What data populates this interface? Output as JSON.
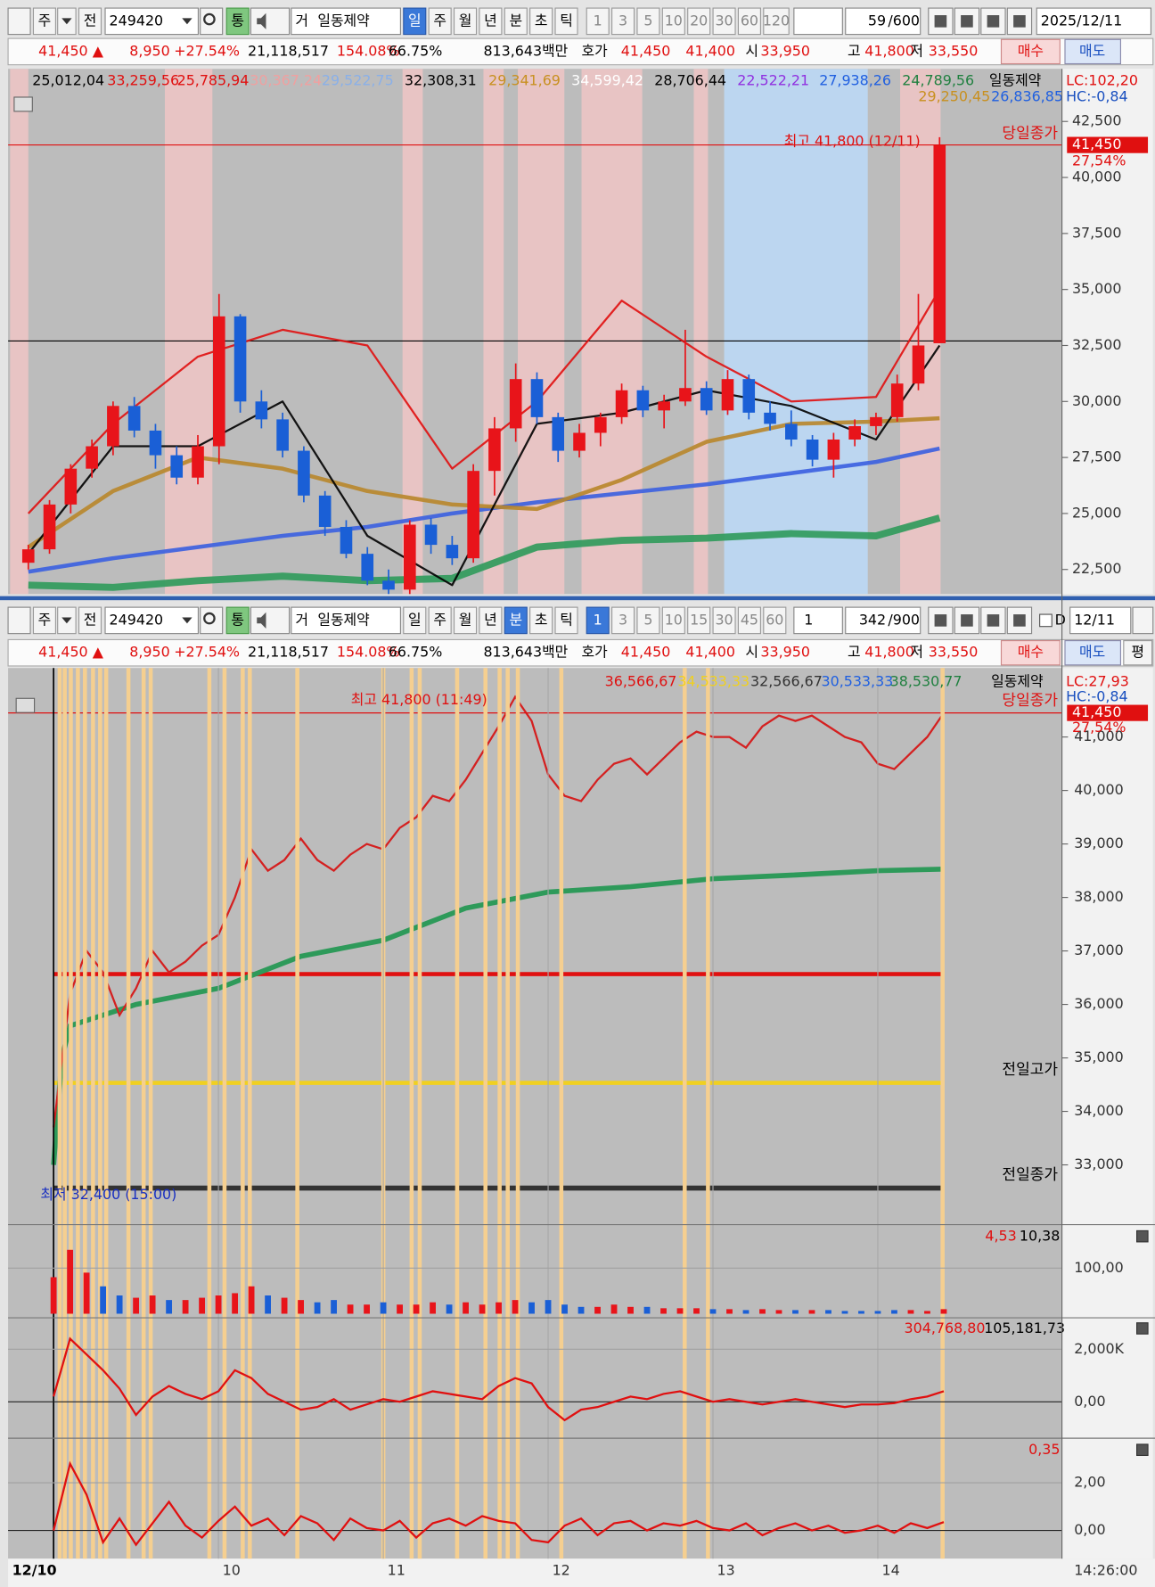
{
  "top_toolbar": {
    "mode": "주",
    "prev": "전",
    "code": "249420",
    "tong": "통",
    "geo": "거",
    "name": "일동제약",
    "periods": [
      "일",
      "주",
      "월",
      "년",
      "분",
      "초",
      "틱"
    ],
    "intervals": [
      "1",
      "3",
      "5",
      "10",
      "20",
      "30",
      "60",
      "120"
    ],
    "count": "59",
    "max": "/600",
    "date": "2025/12/11"
  },
  "top_info": {
    "price": "41,450 ▲",
    "change": "8,950",
    "rate": "+27.54%",
    "volume": "21,118,517",
    "vol_ratio": "154.08%",
    "turnover": "66.75%",
    "amount": "813,643백만",
    "quote_label": "호가",
    "ask": "41,450",
    "bid": "41,400",
    "open_label": "시",
    "open": "33,950",
    "high_label": "고",
    "high": "41,800",
    "low_label": "저",
    "low": "33,550",
    "buy": "매수",
    "sell": "매도"
  },
  "daily": {
    "type": "candlestick",
    "up_color": "#e8141a",
    "down_color": "#1a5fd6",
    "legend": [
      {
        "label": "25,012,04",
        "color": "#000000"
      },
      {
        "label": "33,259,56",
        "color": "#e01010"
      },
      {
        "label": "25,785,94",
        "color": "#e01010"
      },
      {
        "label": "30,367,24",
        "color": "#f0a0a0"
      },
      {
        "label": "29,522,75",
        "color": "#8ab0e8"
      },
      {
        "label": "32,308,31",
        "color": "#000000"
      },
      {
        "label": "29,341,69",
        "color": "#c89020"
      },
      {
        "label": "34,599,42",
        "color": "#ffffff"
      },
      {
        "label": "28,706,44",
        "color": "#000000"
      },
      {
        "label": "22,522,21",
        "color": "#9030e0"
      },
      {
        "label": "27,938,26",
        "color": "#2060e0"
      },
      {
        "label": "24,789,56",
        "color": "#208040"
      }
    ],
    "legend2": [
      {
        "label": "29,250,45",
        "color": "#c89020"
      },
      {
        "label": "26,836,85",
        "color": "#2060e0"
      }
    ],
    "name": "일동제약",
    "lc": "LC:102,20",
    "hc": "HC:-0,84",
    "max_note": "최고 41,800 (12/11)",
    "close_label": "당일종가",
    "last": {
      "value": 41450,
      "label": "41,450"
    },
    "last_rate": "27,54%",
    "hline": 32700,
    "ylim": [
      21400,
      44850
    ],
    "yticks": [
      {
        "value": 42500,
        "label": "42,500"
      },
      {
        "value": 40000,
        "label": "40,000"
      },
      {
        "value": 37500,
        "label": "37,500"
      },
      {
        "value": 35000,
        "label": "35,000"
      },
      {
        "value": 32500,
        "label": "32,500"
      },
      {
        "value": 30000,
        "label": "30,000"
      },
      {
        "value": 27500,
        "label": "27,500"
      },
      {
        "value": 25000,
        "label": "25,000"
      },
      {
        "value": 22500,
        "label": "22,500"
      }
    ],
    "candles": [
      [
        22800,
        23600,
        22500,
        23400
      ],
      [
        23400,
        25600,
        23200,
        25400
      ],
      [
        25400,
        27200,
        25000,
        27000
      ],
      [
        27000,
        28300,
        26600,
        28000
      ],
      [
        28000,
        30000,
        27600,
        29800
      ],
      [
        29800,
        30200,
        28400,
        28700
      ],
      [
        28700,
        29000,
        27000,
        27600
      ],
      [
        27600,
        28000,
        26300,
        26600
      ],
      [
        26600,
        28500,
        26300,
        28000
      ],
      [
        28000,
        34800,
        27200,
        33800
      ],
      [
        33800,
        33900,
        29500,
        30000
      ],
      [
        30000,
        30500,
        28800,
        29200
      ],
      [
        29200,
        29500,
        27500,
        27800
      ],
      [
        27800,
        28000,
        25500,
        25800
      ],
      [
        25800,
        26000,
        24000,
        24400
      ],
      [
        24400,
        24700,
        23000,
        23200
      ],
      [
        23200,
        23500,
        21800,
        22000
      ],
      [
        22000,
        22500,
        21400,
        21600
      ],
      [
        21600,
        24700,
        21400,
        24500
      ],
      [
        24500,
        24800,
        23200,
        23600
      ],
      [
        23600,
        24000,
        22700,
        23000
      ],
      [
        23000,
        27200,
        22800,
        26900
      ],
      [
        26900,
        29300,
        25800,
        28800
      ],
      [
        28800,
        31700,
        28200,
        31000
      ],
      [
        31000,
        31300,
        29000,
        29300
      ],
      [
        29300,
        29500,
        27300,
        27800
      ],
      [
        27800,
        29000,
        27500,
        28600
      ],
      [
        28600,
        29500,
        28000,
        29300
      ],
      [
        29300,
        30800,
        29000,
        30500
      ],
      [
        30500,
        30700,
        29300,
        29600
      ],
      [
        29600,
        30300,
        28800,
        30000
      ],
      [
        30000,
        33200,
        29800,
        30600
      ],
      [
        30600,
        30900,
        29400,
        29600
      ],
      [
        29600,
        31400,
        29400,
        31000
      ],
      [
        31000,
        31200,
        29200,
        29500
      ],
      [
        29500,
        30000,
        28700,
        29000
      ],
      [
        29000,
        29600,
        28000,
        28300
      ],
      [
        28300,
        28500,
        27100,
        27400
      ],
      [
        27400,
        28600,
        26600,
        28300
      ],
      [
        28300,
        29200,
        28000,
        28900
      ],
      [
        28900,
        29500,
        28500,
        29300
      ],
      [
        29300,
        31200,
        29100,
        30800
      ],
      [
        30800,
        34800,
        30500,
        32500
      ],
      [
        32600,
        41800,
        32600,
        41450
      ]
    ],
    "overlays": [
      {
        "color": "#2e9a5a",
        "width": 7,
        "idx": [
          0,
          4,
          8,
          12,
          16,
          20,
          24,
          28,
          32,
          36,
          40,
          43
        ],
        "values": [
          21800,
          21700,
          22000,
          22200,
          22000,
          22100,
          23500,
          23800,
          23900,
          24100,
          24000,
          24800
        ]
      },
      {
        "color": "#3a5fe0",
        "width": 4,
        "idx": [
          0,
          4,
          8,
          12,
          16,
          20,
          24,
          28,
          32,
          36,
          40,
          43
        ],
        "values": [
          22400,
          23000,
          23500,
          24000,
          24400,
          25000,
          25500,
          25900,
          26300,
          26800,
          27300,
          27900
        ]
      },
      {
        "color": "#b8862a",
        "width": 4,
        "idx": [
          0,
          4,
          8,
          12,
          16,
          20,
          24,
          28,
          32,
          36,
          40,
          43
        ],
        "values": [
          23500,
          26000,
          27500,
          27000,
          26000,
          25400,
          25200,
          26500,
          28200,
          29000,
          29100,
          29250
        ]
      },
      {
        "color": "#e01010",
        "width": 2,
        "idx": [
          0,
          4,
          8,
          12,
          16,
          20,
          24,
          28,
          32,
          36,
          40,
          43
        ],
        "values": [
          25000,
          29000,
          32000,
          33200,
          32500,
          27000,
          30000,
          34500,
          32000,
          30000,
          30200,
          35000
        ]
      },
      {
        "color": "#000000",
        "width": 2,
        "idx": [
          0,
          4,
          8,
          12,
          16,
          20,
          24,
          28,
          32,
          36,
          40,
          43
        ],
        "values": [
          23200,
          28000,
          28000,
          30000,
          24000,
          21800,
          29000,
          29500,
          30500,
          29800,
          28300,
          32500
        ]
      }
    ]
  },
  "bottom_toolbar": {
    "mode": "주",
    "prev": "전",
    "code": "249420",
    "tong": "통",
    "geo": "거",
    "name": "일동제약",
    "periods": [
      "일",
      "주",
      "월",
      "년",
      "분",
      "초",
      "틱"
    ],
    "intervals": [
      "1",
      "3",
      "5",
      "10",
      "15",
      "30",
      "45",
      "60"
    ],
    "unit": "1",
    "count": "342",
    "max": "/900",
    "check": "D",
    "date": "12/11"
  },
  "bottom_info": {
    "price": "41,450 ▲",
    "change": "8,950",
    "rate": "+27.54%",
    "volume": "21,118,517",
    "vol_ratio": "154.08%",
    "turnover": "66.75%",
    "amount": "813,643백만",
    "quote_label": "호가",
    "ask": "41,450",
    "bid": "41,400",
    "open_label": "시",
    "open": "33,950",
    "high_label": "고",
    "high": "41,800",
    "low_label": "저",
    "low": "33,550",
    "buy": "매수",
    "sell": "매도",
    "avg": "평"
  },
  "intraday": {
    "type": "line",
    "color": "#d42020",
    "up_color": "#e8141a",
    "down_color": "#1a5fd6",
    "x": [
      9,
      9.1,
      9.2,
      9.3,
      9.4,
      9.5,
      9.6,
      9.7,
      9.8,
      9.9,
      10,
      10.1,
      10.2,
      10.3,
      10.4,
      10.5,
      10.6,
      10.7,
      10.8,
      10.9,
      11,
      11.1,
      11.2,
      11.3,
      11.4,
      11.5,
      11.6,
      11.7,
      11.8,
      11.9,
      12,
      12.1,
      12.2,
      12.3,
      12.4,
      12.5,
      12.6,
      12.7,
      12.8,
      12.9,
      13,
      13.1,
      13.2,
      13.3,
      13.4,
      13.5,
      13.6,
      13.7,
      13.8,
      13.9,
      14,
      14.1,
      14.2,
      14.3,
      14.4
    ],
    "price": [
      33700,
      36200,
      37000,
      36600,
      35800,
      36300,
      37000,
      36600,
      36800,
      37100,
      37300,
      38000,
      38900,
      38500,
      38700,
      39100,
      38700,
      38500,
      38800,
      39000,
      38900,
      39300,
      39500,
      39900,
      39800,
      40200,
      40700,
      41200,
      41750,
      41300,
      40300,
      39900,
      39800,
      40200,
      40500,
      40600,
      40300,
      40600,
      40900,
      41100,
      41000,
      41000,
      40800,
      41200,
      41400,
      41300,
      41400,
      41200,
      41000,
      40900,
      40500,
      40400,
      40700,
      41000,
      41450
    ],
    "vwap": {
      "color": "#2e9a5a",
      "x": [
        9,
        9.05,
        9.1,
        9.5,
        10,
        10.5,
        11,
        11.5,
        12,
        12.5,
        13,
        13.5,
        14,
        14.4
      ],
      "values": [
        33000,
        35000,
        35600,
        36000,
        36300,
        36900,
        37200,
        37800,
        38100,
        38200,
        38350,
        38420,
        38500,
        38530
      ]
    },
    "levels": [
      {
        "value": 36566.67,
        "label": "36,566,67",
        "color": "#e01010",
        "draw": true,
        "width": 4
      },
      {
        "value": 34533.33,
        "label": "34,533,33",
        "color": "#f0d020",
        "draw": true,
        "width": 4
      },
      {
        "value": 32566.67,
        "label": "32,566,67",
        "color": "#333333",
        "draw": true,
        "width": 5
      },
      {
        "value": 30533.33,
        "label": "30,533,33",
        "color": "#2060e0",
        "draw": false,
        "width": 0
      },
      {
        "value": 38530.77,
        "label": "38,530,77",
        "color": "#208040",
        "draw": false,
        "width": 0
      }
    ],
    "name": "일동제약",
    "lc": "LC:27,93",
    "hc": "HC:-0,84",
    "max_note": "최고 41,800 (11:49)",
    "close_label": "당일종가",
    "last": {
      "value": 41450,
      "label": "41,450"
    },
    "last_rate": "27,54%",
    "prev_high": "전일고가",
    "prev_close": "전일종가",
    "low_note": "최저 32,400 (15:00)",
    "ylim": [
      31920,
      42290
    ],
    "yticks": [
      {
        "value": 41000,
        "label": "41,000"
      },
      {
        "value": 40000,
        "label": "40,000"
      },
      {
        "value": 39000,
        "label": "39,000"
      },
      {
        "value": 38000,
        "label": "38,000"
      },
      {
        "value": 37000,
        "label": "37,000"
      },
      {
        "value": 36000,
        "label": "36,000"
      },
      {
        "value": 35000,
        "label": "35,000"
      },
      {
        "value": 34000,
        "label": "34,000"
      },
      {
        "value": 33000,
        "label": "33,000"
      }
    ],
    "xlim": [
      8.724,
      15.117
    ],
    "xticks": [
      10,
      11,
      12,
      13,
      14
    ],
    "date": "12/10",
    "time": "14:26:00"
  },
  "volume": {
    "type": "bar",
    "legend": [
      {
        "label": "4,53",
        "color": "#e01010"
      },
      {
        "label": "10,38",
        "color": "#000000"
      }
    ],
    "ylim": [
      0,
      184
    ],
    "yticks": [
      {
        "value": 100,
        "label": "100,00"
      }
    ],
    "values": [
      80,
      140,
      90,
      60,
      40,
      35,
      40,
      30,
      30,
      35,
      40,
      45,
      60,
      40,
      35,
      30,
      25,
      30,
      20,
      20,
      25,
      20,
      20,
      25,
      20,
      25,
      20,
      25,
      30,
      25,
      30,
      20,
      15,
      15,
      20,
      15,
      15,
      12,
      12,
      12,
      10,
      10,
      8,
      10,
      8,
      8,
      8,
      8,
      6,
      6,
      6,
      8,
      8,
      6,
      10
    ]
  },
  "osc1": {
    "type": "line",
    "color": "#e01010",
    "legend": [
      {
        "label": "304,768,80",
        "color": "#e01010"
      },
      {
        "label": "105,181,73",
        "color": "#000000"
      }
    ],
    "ylim": [
      -1270,
      3080
    ],
    "yticks": [
      {
        "value": 2000,
        "label": "2,000K"
      },
      {
        "value": 0,
        "label": "0,00"
      }
    ],
    "values": [
      200,
      2400,
      1800,
      1200,
      500,
      -500,
      200,
      600,
      300,
      100,
      400,
      1200,
      900,
      300,
      0,
      -300,
      -200,
      100,
      -300,
      -100,
      100,
      0,
      200,
      400,
      300,
      200,
      100,
      600,
      900,
      700,
      -200,
      -700,
      -300,
      -200,
      0,
      200,
      100,
      300,
      400,
      200,
      0,
      100,
      0,
      -100,
      0,
      100,
      0,
      -100,
      -200,
      -100,
      -100,
      -50,
      100,
      200,
      400
    ]
  },
  "osc2": {
    "type": "line",
    "color": "#e01010",
    "legend": [
      {
        "label": "0,35",
        "color": "#e01010"
      }
    ],
    "ylim": [
      -1.1,
      3.7
    ],
    "yticks": [
      {
        "value": 2,
        "label": "2,00"
      },
      {
        "value": 0,
        "label": "0,00"
      }
    ],
    "values": [
      0,
      2.8,
      1.5,
      -0.5,
      0.5,
      -0.6,
      0.3,
      1.2,
      0.2,
      -0.3,
      0.4,
      1.0,
      0.2,
      0.5,
      -0.2,
      0.6,
      0.3,
      -0.4,
      0.5,
      0.1,
      0,
      0.4,
      -0.3,
      0.3,
      0.5,
      0.2,
      0.6,
      0.4,
      0.3,
      -0.4,
      -0.5,
      0.2,
      0.5,
      -0.2,
      0.3,
      0.4,
      0,
      0.3,
      0.2,
      0.4,
      0.1,
      0,
      0.3,
      -0.2,
      0.1,
      0.3,
      0,
      0.2,
      -0.1,
      0,
      0.2,
      -0.1,
      0.3,
      0.1,
      0.35
    ]
  }
}
